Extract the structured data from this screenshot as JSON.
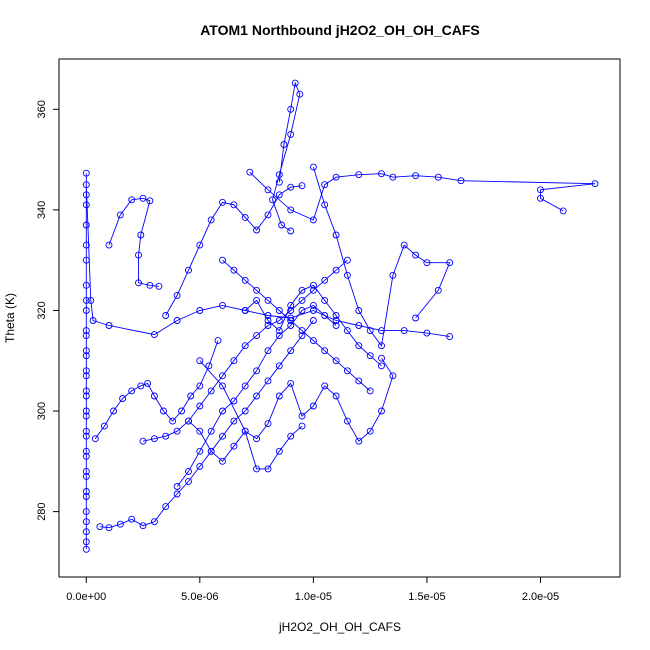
{
  "chart_data": {
    "type": "scatter",
    "title": "ATOM1 Northbound jH2O2_OH_OH_CAFS",
    "xlabel": "jH2O2_OH_OH_CAFS",
    "ylabel": "Theta (K)",
    "xlim": [
      -1.2e-06,
      2.35e-05
    ],
    "ylim": [
      267,
      370
    ],
    "xticks": [
      0,
      5e-06,
      1e-05,
      1.5e-05,
      2e-05
    ],
    "xtick_labels": [
      "0.0e+00",
      "5.0e-06",
      "1.0e-05",
      "1.5e-05",
      "2.0e-05"
    ],
    "yticks": [
      280,
      300,
      320,
      340,
      360
    ],
    "ytick_labels": [
      "280",
      "300",
      "320",
      "340",
      "360"
    ],
    "grid": false,
    "color": "#0000ff",
    "style": "points connected by lines",
    "series": [
      {
        "name": "",
        "points": [
          [
            0,
            347.3
          ],
          [
            0,
            343
          ],
          [
            0,
            337
          ],
          [
            0,
            330
          ],
          [
            0,
            322
          ],
          [
            0,
            315
          ],
          [
            0,
            312
          ],
          [
            0,
            308
          ],
          [
            0,
            304
          ],
          [
            0,
            300
          ],
          [
            0,
            296
          ],
          [
            0,
            292
          ],
          [
            0,
            288
          ],
          [
            0,
            284
          ],
          [
            0,
            280
          ],
          [
            0,
            276
          ],
          [
            0,
            272.5
          ],
          [
            0,
            274
          ],
          [
            0,
            278
          ],
          [
            0,
            283
          ],
          [
            0,
            287
          ],
          [
            0,
            291
          ],
          [
            0,
            295
          ],
          [
            0,
            299
          ],
          [
            0,
            303
          ],
          [
            0,
            307
          ],
          [
            0,
            311
          ],
          [
            0,
            316
          ],
          [
            0,
            320
          ],
          [
            0,
            325
          ],
          [
            0,
            333
          ],
          [
            0,
            341
          ],
          [
            0,
            345
          ],
          [
            2e-07,
            322
          ],
          [
            3e-07,
            318
          ],
          [
            1e-06,
            317
          ],
          [
            3e-06,
            315.2
          ],
          [
            4e-06,
            318
          ],
          [
            5e-06,
            320
          ],
          [
            6e-06,
            321
          ],
          [
            7e-06,
            320
          ],
          [
            8e-06,
            319
          ],
          [
            9e-06,
            318.5
          ],
          [
            1e-05,
            320
          ],
          [
            1.1e-05,
            318
          ],
          [
            1.2e-05,
            317
          ],
          [
            1.3e-05,
            316
          ],
          [
            1.4e-05,
            316
          ],
          [
            1.5e-05,
            315.5
          ],
          [
            1.6e-05,
            314.8
          ]
        ]
      },
      {
        "name": "",
        "points": [
          [
            1e-06,
            333
          ],
          [
            1.5e-06,
            339
          ],
          [
            2e-06,
            342
          ],
          [
            2.5e-06,
            342.3
          ],
          [
            2.8e-06,
            341.8
          ],
          [
            2.4e-06,
            335
          ],
          [
            2.3e-06,
            331
          ],
          [
            2.3e-06,
            325.5
          ],
          [
            2.8e-06,
            325
          ],
          [
            3.2e-06,
            324.8
          ]
        ]
      },
      {
        "name": "",
        "points": [
          [
            4e-07,
            294.5
          ],
          [
            8e-07,
            297
          ],
          [
            1.2e-06,
            300
          ],
          [
            1.6e-06,
            302.5
          ],
          [
            2e-06,
            304
          ],
          [
            2.4e-06,
            305
          ],
          [
            2.7e-06,
            305.5
          ],
          [
            3e-06,
            303
          ],
          [
            3.4e-06,
            300
          ],
          [
            3.8e-06,
            298
          ],
          [
            4.2e-06,
            300
          ],
          [
            4.6e-06,
            303
          ],
          [
            5e-06,
            305
          ],
          [
            5.4e-06,
            309
          ],
          [
            5.8e-06,
            314
          ]
        ]
      },
      {
        "name": "",
        "points": [
          [
            6e-07,
            277
          ],
          [
            1e-06,
            276.8
          ],
          [
            1.5e-06,
            277.5
          ],
          [
            2e-06,
            278.5
          ],
          [
            2.5e-06,
            277.2
          ],
          [
            3e-06,
            278
          ],
          [
            3.5e-06,
            281
          ],
          [
            4e-06,
            283.5
          ],
          [
            4.5e-06,
            286
          ],
          [
            5e-06,
            289
          ],
          [
            5.5e-06,
            292
          ],
          [
            6e-06,
            295
          ],
          [
            6.5e-06,
            298
          ],
          [
            7e-06,
            300
          ],
          [
            7.5e-06,
            303
          ],
          [
            8e-06,
            306
          ],
          [
            8.5e-06,
            309
          ],
          [
            9e-06,
            312
          ],
          [
            9.5e-06,
            315
          ],
          [
            1e-05,
            318
          ]
        ]
      },
      {
        "name": "",
        "points": [
          [
            3.5e-06,
            319
          ],
          [
            4e-06,
            323
          ],
          [
            4.5e-06,
            328
          ],
          [
            5e-06,
            333
          ],
          [
            5.5e-06,
            338
          ],
          [
            6e-06,
            341.5
          ],
          [
            6.5e-06,
            341
          ],
          [
            7e-06,
            338.5
          ],
          [
            7.5e-06,
            336
          ],
          [
            8e-06,
            339
          ],
          [
            8.5e-06,
            343
          ],
          [
            9e-06,
            344.5
          ],
          [
            9.5e-06,
            344.8
          ]
        ]
      },
      {
        "name": "",
        "points": [
          [
            8.5e-06,
            345.5
          ],
          [
            8.7e-06,
            353
          ],
          [
            9e-06,
            360
          ],
          [
            9.2e-06,
            365.2
          ],
          [
            9.4e-06,
            363
          ],
          [
            9e-06,
            355
          ],
          [
            8.5e-06,
            347
          ],
          [
            8.2e-06,
            342
          ],
          [
            8.6e-06,
            337
          ],
          [
            9e-06,
            335.8
          ]
        ]
      },
      {
        "name": "",
        "points": [
          [
            7.2e-06,
            347.5
          ],
          [
            8e-06,
            344
          ],
          [
            9e-06,
            340
          ],
          [
            1e-05,
            338
          ],
          [
            1.05e-05,
            345
          ],
          [
            1.1e-05,
            346.5
          ],
          [
            1.2e-05,
            347
          ],
          [
            1.3e-05,
            347.2
          ],
          [
            1.35e-05,
            346.5
          ],
          [
            1.45e-05,
            346.8
          ],
          [
            1.55e-05,
            346.5
          ],
          [
            1.65e-05,
            345.8
          ],
          [
            2.24e-05,
            345.2
          ],
          [
            2e-05,
            344
          ],
          [
            2e-05,
            342.3
          ],
          [
            2.1e-05,
            339.8
          ]
        ]
      },
      {
        "name": "",
        "points": [
          [
            1e-05,
            348.5
          ],
          [
            1.05e-05,
            341
          ],
          [
            1.1e-05,
            335
          ],
          [
            1.15e-05,
            327
          ],
          [
            1.2e-05,
            320
          ],
          [
            1.25e-05,
            316
          ],
          [
            1.3e-05,
            313
          ],
          [
            1.35e-05,
            327
          ],
          [
            1.4e-05,
            333
          ],
          [
            1.45e-05,
            331
          ],
          [
            1.5e-05,
            329.5
          ],
          [
            1.6e-05,
            329.5
          ],
          [
            1.55e-05,
            324
          ],
          [
            1.45e-05,
            318.5
          ]
        ]
      },
      {
        "name": "",
        "points": [
          [
            5e-06,
            310
          ],
          [
            6e-06,
            305
          ],
          [
            7e-06,
            296
          ],
          [
            7.5e-06,
            294.5
          ],
          [
            8e-06,
            297.5
          ],
          [
            8.5e-06,
            303
          ],
          [
            9e-06,
            305.5
          ],
          [
            9.5e-06,
            299
          ],
          [
            1e-05,
            301
          ],
          [
            1.05e-05,
            305
          ],
          [
            1.1e-05,
            303
          ],
          [
            1.15e-05,
            298
          ],
          [
            1.2e-05,
            294
          ],
          [
            1.25e-05,
            296
          ],
          [
            1.3e-05,
            300
          ],
          [
            1.35e-05,
            307
          ],
          [
            1.3e-05,
            310.5
          ]
        ]
      },
      {
        "name": "",
        "points": [
          [
            4.5e-06,
            298
          ],
          [
            5e-06,
            296
          ],
          [
            5.5e-06,
            292
          ],
          [
            6e-06,
            290
          ],
          [
            6.5e-06,
            293
          ],
          [
            7e-06,
            296
          ],
          [
            7.5e-06,
            288.5
          ],
          [
            8e-06,
            288.5
          ],
          [
            8.5e-06,
            292
          ],
          [
            9e-06,
            295
          ],
          [
            9.5e-06,
            297
          ]
        ]
      },
      {
        "name": "",
        "points": [
          [
            2.5e-06,
            294
          ],
          [
            3e-06,
            294.5
          ],
          [
            3.5e-06,
            295
          ],
          [
            4e-06,
            296
          ],
          [
            4.5e-06,
            298
          ],
          [
            5e-06,
            301
          ],
          [
            5.5e-06,
            304
          ],
          [
            6e-06,
            307
          ],
          [
            6.5e-06,
            310
          ],
          [
            7e-06,
            313
          ],
          [
            7.5e-06,
            315
          ],
          [
            8e-06,
            317
          ],
          [
            8.5e-06,
            318
          ],
          [
            9e-06,
            320
          ],
          [
            9.5e-06,
            322
          ],
          [
            1e-05,
            324
          ],
          [
            1.05e-05,
            326
          ],
          [
            1.1e-05,
            328
          ],
          [
            1.15e-05,
            330
          ]
        ]
      },
      {
        "name": "",
        "points": [
          [
            6e-06,
            330
          ],
          [
            6.5e-06,
            328
          ],
          [
            7e-06,
            326
          ],
          [
            7.5e-06,
            324
          ],
          [
            8e-06,
            322
          ],
          [
            8.5e-06,
            320
          ],
          [
            9e-06,
            318
          ],
          [
            9.5e-06,
            316
          ],
          [
            1e-05,
            314
          ],
          [
            1.05e-05,
            312
          ],
          [
            1.1e-05,
            310
          ],
          [
            1.15e-05,
            308
          ],
          [
            1.2e-05,
            306
          ],
          [
            1.25e-05,
            304
          ]
        ]
      },
      {
        "name": "",
        "points": [
          [
            4e-06,
            285
          ],
          [
            4.5e-06,
            288
          ],
          [
            5e-06,
            292
          ],
          [
            5.5e-06,
            296
          ],
          [
            6e-06,
            300
          ],
          [
            6.5e-06,
            302
          ],
          [
            7e-06,
            305
          ],
          [
            7.5e-06,
            308
          ],
          [
            8e-06,
            312
          ],
          [
            8.5e-06,
            315
          ],
          [
            9e-06,
            317
          ],
          [
            9.5e-06,
            320
          ],
          [
            1e-05,
            321
          ],
          [
            1.05e-05,
            319
          ],
          [
            1.1e-05,
            317
          ]
        ]
      },
      {
        "name": "",
        "points": [
          [
            7e-06,
            320
          ],
          [
            7.5e-06,
            322
          ],
          [
            8e-06,
            318
          ],
          [
            8.5e-06,
            316
          ],
          [
            9e-06,
            321
          ],
          [
            9.5e-06,
            324
          ],
          [
            1e-05,
            325
          ],
          [
            1.05e-05,
            322
          ],
          [
            1.1e-05,
            319
          ],
          [
            1.15e-05,
            316
          ],
          [
            1.2e-05,
            313
          ],
          [
            1.25e-05,
            311
          ],
          [
            1.3e-05,
            309
          ]
        ]
      }
    ]
  }
}
